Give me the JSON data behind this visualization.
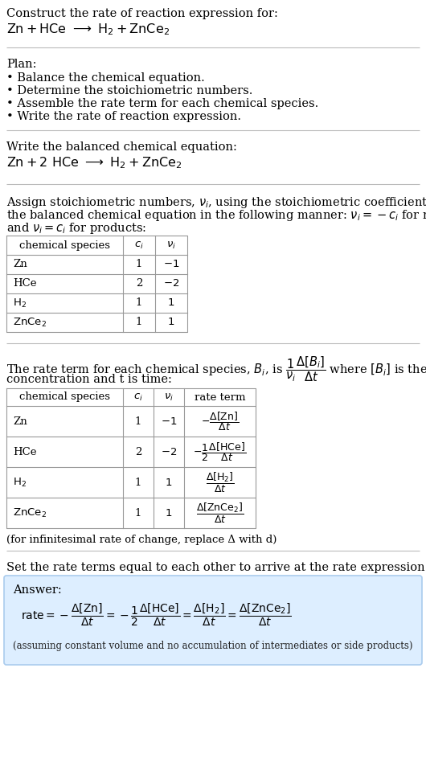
{
  "title_line1": "Construct the rate of reaction expression for:",
  "plan_header": "Plan:",
  "plan_items": [
    "• Balance the chemical equation.",
    "• Determine the stoichiometric numbers.",
    "• Assemble the rate term for each chemical species.",
    "• Write the rate of reaction expression."
  ],
  "balanced_header": "Write the balanced chemical equation:",
  "assign_line1": "Assign stoichiometric numbers, ",
  "assign_line2_a": "the balanced chemical equation in the following manner: ",
  "assign_line3": "and ",
  "rate_text2": "concentration and t is time:",
  "infinitesimal_note": "(for infinitesimal rate of change, replace Δ with d)",
  "set_equal_text": "Set the rate terms equal to each other to arrive at the rate expression:",
  "answer_label": "Answer:",
  "answer_box_color": "#ddeeff",
  "answer_box_edge": "#aaccee",
  "assuming_note": "(assuming constant volume and no accumulation of intermediates or side products)",
  "bg_color": "#ffffff",
  "text_color": "#000000",
  "table_border_color": "#999999",
  "font_size": 10.5,
  "small_font_size": 9.5
}
